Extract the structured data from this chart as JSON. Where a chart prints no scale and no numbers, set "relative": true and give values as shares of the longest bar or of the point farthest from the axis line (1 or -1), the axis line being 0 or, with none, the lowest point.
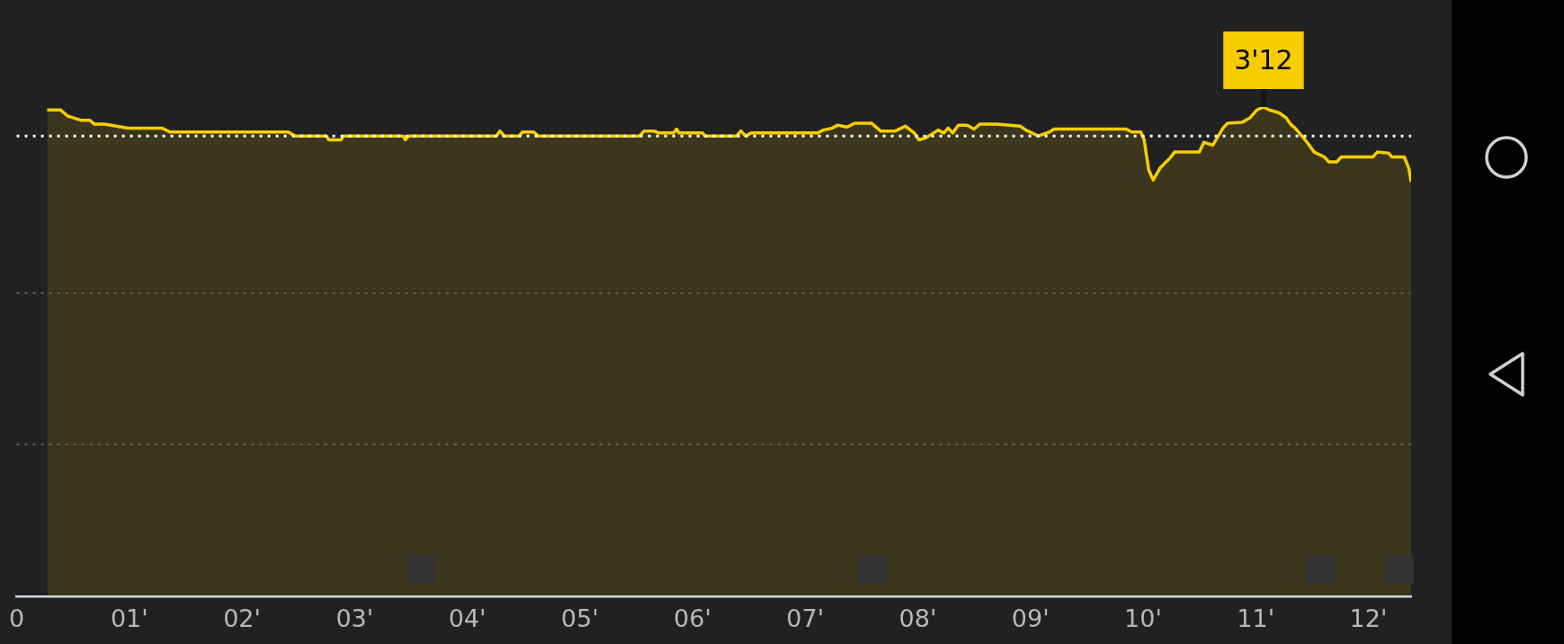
{
  "chart_data": {
    "type": "area",
    "relative": true,
    "xlim": [
      0,
      12.38
    ],
    "xticks": [
      {
        "value": 0,
        "label": "0"
      },
      {
        "value": 1,
        "label": "01'"
      },
      {
        "value": 2,
        "label": "02'"
      },
      {
        "value": 3,
        "label": "03'"
      },
      {
        "value": 4,
        "label": "04'"
      },
      {
        "value": 5,
        "label": "05'"
      },
      {
        "value": 6,
        "label": "06'"
      },
      {
        "value": 7,
        "label": "07'"
      },
      {
        "value": 8,
        "label": "08'"
      },
      {
        "value": 9,
        "label": "09'"
      },
      {
        "value": 10,
        "label": "10'"
      },
      {
        "value": 11,
        "label": "11'"
      },
      {
        "value": 12,
        "label": "12'"
      }
    ],
    "series": [
      {
        "color": "#f5cd00",
        "x": [
          0.27,
          0.39,
          0.45,
          0.57,
          0.65,
          0.69,
          0.78,
          0.99,
          1.29,
          1.36,
          2.41,
          2.47,
          2.75,
          2.77,
          2.88,
          2.9,
          3.43,
          3.45,
          3.48,
          4.26,
          4.29,
          4.33,
          4.46,
          4.49,
          4.59,
          4.63,
          5.53,
          5.57,
          5.66,
          5.7,
          5.83,
          5.86,
          5.88,
          6.09,
          6.11,
          6.39,
          6.43,
          6.47,
          6.52,
          7.11,
          7.16,
          7.24,
          7.29,
          7.37,
          7.44,
          7.59,
          7.63,
          7.67,
          7.8,
          7.89,
          7.97,
          8.01,
          8.07,
          8.14,
          8.18,
          8.23,
          8.27,
          8.31,
          8.36,
          8.44,
          8.5,
          8.55,
          8.7,
          8.91,
          8.96,
          9.07,
          9.17,
          9.21,
          9.85,
          9.9,
          9.98,
          10.01,
          10.05,
          10.09,
          10.15,
          10.24,
          10.28,
          10.5,
          10.54,
          10.62,
          10.71,
          10.75,
          10.88,
          10.95,
          11.01,
          11.07,
          11.12,
          11.21,
          11.27,
          11.31,
          11.35,
          11.44,
          11.52,
          11.61,
          11.65,
          11.72,
          11.76,
          12.04,
          12.08,
          12.18,
          12.21,
          12.32,
          12.36,
          12.38
        ],
        "values": [
          0.994,
          0.994,
          0.982,
          0.973,
          0.973,
          0.965,
          0.965,
          0.957,
          0.957,
          0.949,
          0.949,
          0.941,
          0.941,
          0.933,
          0.933,
          0.941,
          0.941,
          0.933,
          0.941,
          0.941,
          0.951,
          0.941,
          0.941,
          0.949,
          0.949,
          0.941,
          0.941,
          0.951,
          0.951,
          0.947,
          0.947,
          0.955,
          0.947,
          0.947,
          0.941,
          0.941,
          0.951,
          0.941,
          0.947,
          0.947,
          0.953,
          0.957,
          0.963,
          0.959,
          0.967,
          0.967,
          0.959,
          0.951,
          0.951,
          0.961,
          0.947,
          0.933,
          0.937,
          0.947,
          0.953,
          0.947,
          0.957,
          0.947,
          0.963,
          0.963,
          0.955,
          0.965,
          0.965,
          0.961,
          0.953,
          0.941,
          0.949,
          0.955,
          0.955,
          0.949,
          0.949,
          0.933,
          0.872,
          0.851,
          0.875,
          0.896,
          0.908,
          0.908,
          0.928,
          0.922,
          0.957,
          0.967,
          0.969,
          0.978,
          0.994,
          1,
          0.994,
          0.988,
          0.978,
          0.965,
          0.957,
          0.933,
          0.908,
          0.898,
          0.888,
          0.888,
          0.898,
          0.898,
          0.908,
          0.906,
          0.898,
          0.898,
          0.875,
          0.847
        ]
      }
    ],
    "ref_lines": [
      {
        "axis": "y",
        "value": 0.941,
        "color": "#ffffff",
        "line_style": "dotted"
      },
      {
        "axis": "y",
        "value": 0.62,
        "color": "#77735f",
        "line_style": "dotted"
      },
      {
        "axis": "y",
        "value": 0.311,
        "color": "#77735f",
        "line_style": "dotted"
      }
    ],
    "annotations": [
      {
        "text": "3'12",
        "x": 11.07,
        "y": 1
      }
    ]
  }
}
